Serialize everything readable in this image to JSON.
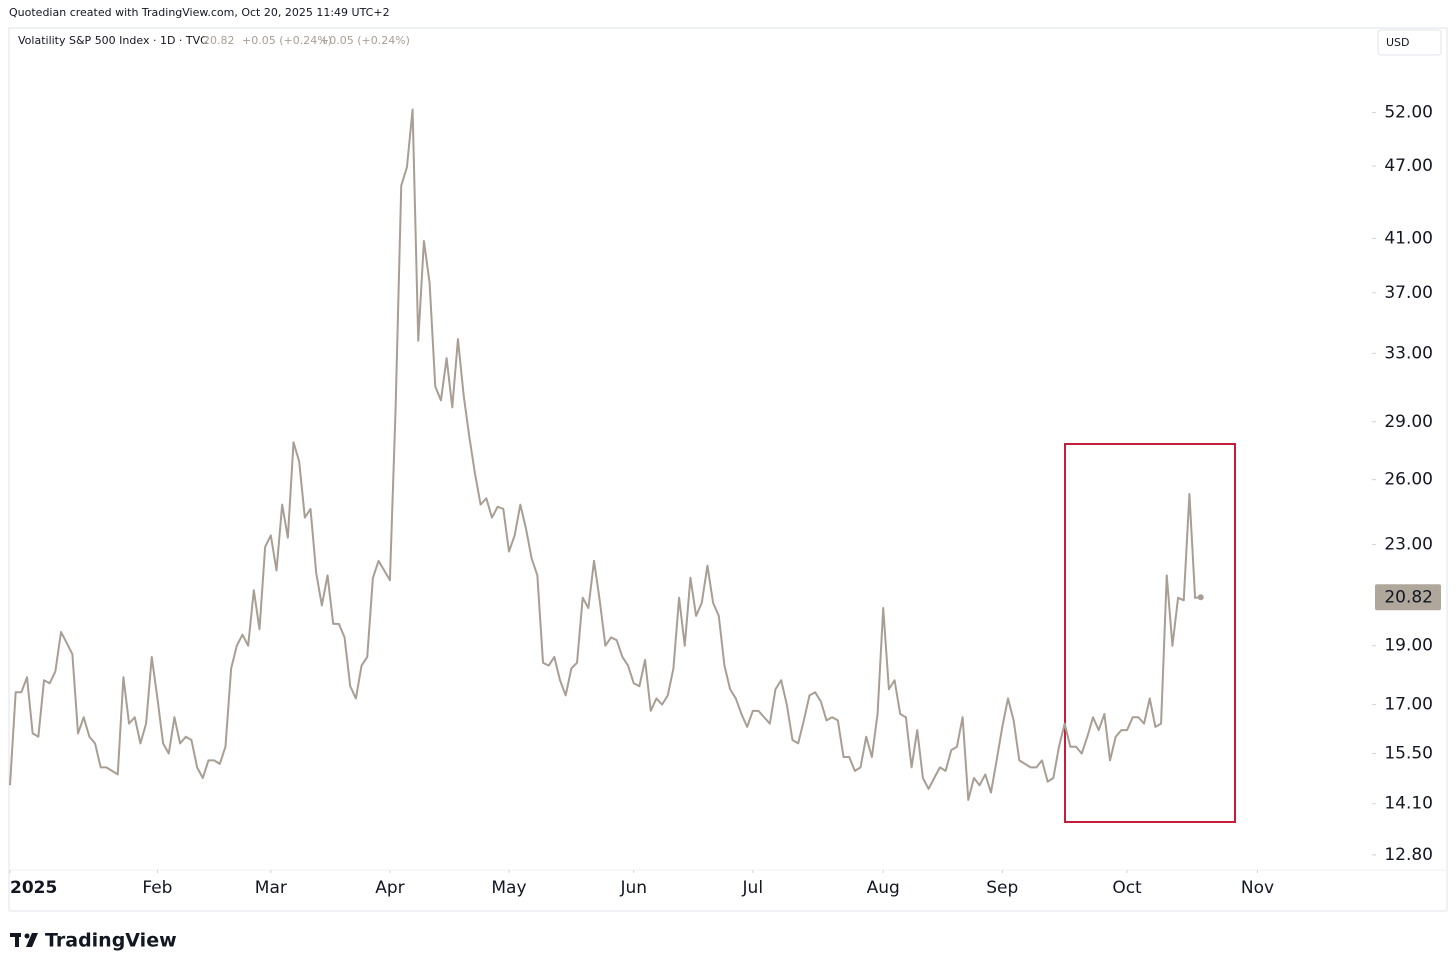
{
  "header": {
    "credit": "Quotedian created with TradingView.com, Oct 20, 2025 11:49 UTC+2",
    "symbol": "Volatility S&P 500 Index · 1D · TVC",
    "changes": [
      "+0.05 (+0.24%)",
      "+0.05 (+0.24%)"
    ],
    "currency": "USD",
    "brand": "TradingView"
  },
  "chart_data": {
    "type": "line",
    "log_scale": true,
    "grid": false,
    "xlim": [
      0,
      240.2
    ],
    "xticks": [
      {
        "value": 0,
        "label": "2025"
      },
      {
        "value": 26,
        "label": "Feb"
      },
      {
        "value": 46,
        "label": "Mar"
      },
      {
        "value": 67,
        "label": "Apr"
      },
      {
        "value": 88,
        "label": "May"
      },
      {
        "value": 110,
        "label": "Jun"
      },
      {
        "value": 131,
        "label": "Jul"
      },
      {
        "value": 154,
        "label": "Aug"
      },
      {
        "value": 175,
        "label": "Sep"
      },
      {
        "value": 197,
        "label": "Oct"
      },
      {
        "value": 220,
        "label": "Nov"
      }
    ],
    "ylim": [
      12.44,
      61.0
    ],
    "yticks": [
      {
        "value": 12.8,
        "label": "12.80"
      },
      {
        "value": 14.1,
        "label": "14.10"
      },
      {
        "value": 15.5,
        "label": "15.50"
      },
      {
        "value": 17,
        "label": "17.00"
      },
      {
        "value": 19,
        "label": "19.00"
      },
      {
        "value": 23,
        "label": "23.00"
      },
      {
        "value": 26,
        "label": "26.00"
      },
      {
        "value": 29,
        "label": "29.00"
      },
      {
        "value": 33,
        "label": "33.00"
      },
      {
        "value": 37,
        "label": "37.00"
      },
      {
        "value": 41,
        "label": "41.00"
      },
      {
        "value": 47,
        "label": "47.00"
      },
      {
        "value": 52,
        "label": "52.00"
      }
    ],
    "series": [
      {
        "name": "Volatility S&P 500 Index",
        "color": "#a89e93",
        "values": [
          14.6,
          17.4,
          17.4,
          17.9,
          16.1,
          16.0,
          17.8,
          17.7,
          18.1,
          19.5,
          19.1,
          18.7,
          16.1,
          16.6,
          16.0,
          15.8,
          15.1,
          15.1,
          15.0,
          14.9,
          17.9,
          16.4,
          16.6,
          15.8,
          16.4,
          18.6,
          17.2,
          15.8,
          15.5,
          16.6,
          15.8,
          16.0,
          15.9,
          15.1,
          14.8,
          15.3,
          15.3,
          15.2,
          15.7,
          18.2,
          19.0,
          19.4,
          19.0,
          21.1,
          19.6,
          22.9,
          23.4,
          21.9,
          24.8,
          23.3,
          27.9,
          26.9,
          24.2,
          24.6,
          21.8,
          20.5,
          21.7,
          19.8,
          19.8,
          19.3,
          17.6,
          17.2,
          18.3,
          18.6,
          21.6,
          22.3,
          21.9,
          21.5,
          29.7,
          45.3,
          46.9,
          52.3,
          33.8,
          40.8,
          37.7,
          31.0,
          30.2,
          32.7,
          29.8,
          33.9,
          30.5,
          28.2,
          26.3,
          24.8,
          25.1,
          24.2,
          24.7,
          24.6,
          22.7,
          23.4,
          24.8,
          23.7,
          22.4,
          21.7,
          18.4,
          18.3,
          18.6,
          17.8,
          17.3,
          18.2,
          18.4,
          20.8,
          20.4,
          22.3,
          20.7,
          19.0,
          19.3,
          19.2,
          18.6,
          18.3,
          17.7,
          17.6,
          18.5,
          16.8,
          17.2,
          17.0,
          17.3,
          18.2,
          20.8,
          19.0,
          21.6,
          20.1,
          20.6,
          22.1,
          20.6,
          20.1,
          18.3,
          17.5,
          17.2,
          16.7,
          16.3,
          16.8,
          16.8,
          16.6,
          16.4,
          17.5,
          17.8,
          17.0,
          15.9,
          15.8,
          16.5,
          17.3,
          17.4,
          17.1,
          16.5,
          16.6,
          16.5,
          15.4,
          15.4,
          15.0,
          15.1,
          16.0,
          15.4,
          16.7,
          20.4,
          17.5,
          17.8,
          16.7,
          16.6,
          15.1,
          16.2,
          14.8,
          14.5,
          14.8,
          15.1,
          15.0,
          15.6,
          15.7,
          16.6,
          14.2,
          14.8,
          14.6,
          14.9,
          14.4,
          15.3,
          16.3,
          17.2,
          16.5,
          15.3,
          15.2,
          15.1,
          15.1,
          15.3,
          14.7,
          14.8,
          15.7,
          16.4,
          15.7,
          15.7,
          15.5,
          16.0,
          16.6,
          16.2,
          16.7,
          15.3,
          16.0,
          16.2,
          16.2,
          16.6,
          16.6,
          16.4,
          17.2,
          16.3,
          16.4,
          21.7,
          19.0,
          20.8,
          20.7,
          25.3,
          20.8,
          20.82
        ]
      }
    ]
  }
}
